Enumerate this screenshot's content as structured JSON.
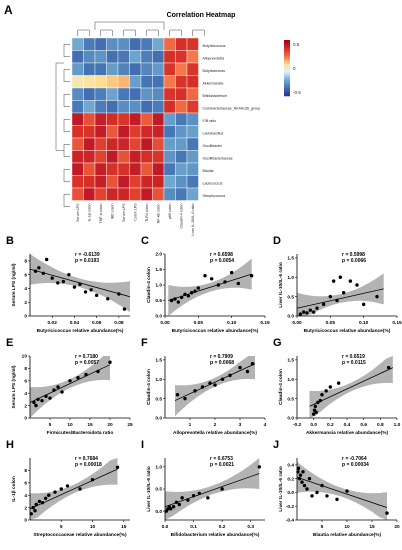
{
  "panel_a": {
    "label": "A",
    "title": "Correlation Heatmap",
    "row_labels": [
      "Butyricicoccus",
      "Alloprevotella",
      "Butyricimonas",
      "Akkermansia",
      "Bifidobacterium",
      "Coriobacteriaceae_NK4A136_group",
      "F/B ratio",
      "Lactobacillus",
      "Oscillibacter",
      "Oscillibacteriaceae",
      "Blautia",
      "Lactococcus",
      "Streptococcus"
    ],
    "col_labels": [
      "Serum LPS",
      "IL-1β colon",
      "TNF-α colon",
      "IBD colon",
      "Serum LPS",
      "Colon LPS",
      "TLR4 colon",
      "NF-κB colon",
      "p65 colon",
      "Claudin-4 colon",
      "Liver IL-10/IL-6 ratio"
    ],
    "legend_ticks": [
      "0.5",
      "0",
      "-0.5"
    ]
  },
  "chart_data": [
    {
      "panel": "B",
      "type": "scatter",
      "xlabel": "Butyricicoccus relative abundance(%)",
      "ylabel": "Serum LPS (ng/ml)",
      "stat_r": "r = -0.6139",
      "stat_p": "p = 0.0193",
      "xticks": [
        "0.02",
        "0.04",
        "0.06",
        "0.08"
      ],
      "yticks": [
        "0",
        "2",
        "4",
        "6",
        "8"
      ],
      "xlim": [
        0,
        0.09
      ],
      "ylim": [
        0,
        9
      ],
      "points": [
        [
          0.005,
          6.5
        ],
        [
          0.008,
          7.0
        ],
        [
          0.012,
          6.2
        ],
        [
          0.015,
          8.2
        ],
        [
          0.02,
          5.5
        ],
        [
          0.025,
          4.8
        ],
        [
          0.03,
          5.0
        ],
        [
          0.035,
          6.0
        ],
        [
          0.04,
          4.2
        ],
        [
          0.045,
          4.6
        ],
        [
          0.05,
          3.5
        ],
        [
          0.055,
          3.8
        ],
        [
          0.06,
          3.0
        ],
        [
          0.07,
          2.5
        ],
        [
          0.08,
          3.2
        ],
        [
          0.085,
          1.0
        ]
      ],
      "line": [
        [
          0,
          6.8
        ],
        [
          0.09,
          2.8
        ]
      ]
    },
    {
      "panel": "C",
      "type": "scatter",
      "xlabel": "Butyricicoccus relative abundance(%)",
      "ylabel": "Claudin-4 colon",
      "stat_r": "r = 0.6598",
      "stat_p": "p = 0.0054",
      "xticks": [
        "0.00",
        "0.05",
        "0.10",
        "0.15"
      ],
      "yticks": [
        "0.0",
        "0.5",
        "1.0",
        "1.5",
        "2.0"
      ],
      "xlim": [
        0,
        0.15
      ],
      "ylim": [
        0,
        2
      ],
      "points": [
        [
          0.01,
          0.5
        ],
        [
          0.015,
          0.55
        ],
        [
          0.02,
          0.45
        ],
        [
          0.025,
          0.6
        ],
        [
          0.03,
          0.7
        ],
        [
          0.035,
          0.65
        ],
        [
          0.04,
          0.75
        ],
        [
          0.045,
          0.8
        ],
        [
          0.05,
          0.9
        ],
        [
          0.06,
          1.3
        ],
        [
          0.07,
          1.2
        ],
        [
          0.08,
          1.0
        ],
        [
          0.09,
          1.1
        ],
        [
          0.1,
          1.4
        ],
        [
          0.11,
          1.05
        ],
        [
          0.13,
          1.3
        ]
      ],
      "line": [
        [
          0.005,
          0.5
        ],
        [
          0.13,
          1.35
        ]
      ]
    },
    {
      "panel": "D",
      "type": "scatter",
      "xlabel": "Butyricicoccus relative abundance(%)",
      "ylabel": "Liver IL-10/IL-6 ratio",
      "stat_r": "r = 0.5998",
      "stat_p": "p = 0.0066",
      "xticks": [
        "0.00",
        "0.05",
        "0.10",
        "0.15"
      ],
      "yticks": [
        "0.0",
        "0.5",
        "1.0",
        "1.5"
      ],
      "xlim": [
        0,
        0.15
      ],
      "ylim": [
        0,
        1.6
      ],
      "points": [
        [
          0.005,
          0.05
        ],
        [
          0.01,
          0.1
        ],
        [
          0.015,
          0.08
        ],
        [
          0.02,
          0.15
        ],
        [
          0.025,
          0.1
        ],
        [
          0.03,
          0.2
        ],
        [
          0.04,
          0.3
        ],
        [
          0.05,
          0.5
        ],
        [
          0.055,
          0.9
        ],
        [
          0.06,
          0.4
        ],
        [
          0.065,
          1.0
        ],
        [
          0.07,
          0.6
        ],
        [
          0.08,
          0.9
        ],
        [
          0.09,
          0.8
        ],
        [
          0.1,
          0.3
        ],
        [
          0.12,
          0.5
        ]
      ],
      "line": [
        [
          0.0,
          0.2
        ],
        [
          0.13,
          0.7
        ]
      ]
    },
    {
      "panel": "E",
      "type": "scatter",
      "xlabel": "Firmicutes/Bacteroidota ratio",
      "ylabel": "Serum LPS (ng/ml)",
      "stat_r": "r = 0.7180",
      "stat_p": "p = 0.0057",
      "xticks": [
        "5",
        "10",
        "15",
        "20",
        "25"
      ],
      "yticks": [
        "0",
        "2",
        "4",
        "6",
        "8",
        "10"
      ],
      "xlim": [
        0,
        25
      ],
      "ylim": [
        0,
        10
      ],
      "points": [
        [
          1,
          2.5
        ],
        [
          1.5,
          2.0
        ],
        [
          2,
          3.0
        ],
        [
          3,
          2.8
        ],
        [
          4,
          3.5
        ],
        [
          5,
          3.2
        ],
        [
          6,
          4.5
        ],
        [
          7,
          5.0
        ],
        [
          8,
          4.2
        ],
        [
          10,
          6.0
        ],
        [
          12,
          6.5
        ],
        [
          14,
          7.0
        ],
        [
          17,
          7.5
        ],
        [
          20,
          9.0
        ]
      ],
      "line": [
        [
          0,
          2.5
        ],
        [
          20,
          8.6
        ]
      ]
    },
    {
      "panel": "F",
      "type": "scatter",
      "xlabel": "Alloprevotella relative abundance(%)",
      "ylabel": "Claudin-4 colon",
      "stat_r": "r = 0.7909",
      "stat_p": "p = 0.0068",
      "xticks": [
        "1",
        "2",
        "3",
        "4"
      ],
      "yticks": [
        "0.0",
        "0.5",
        "1.0",
        "1.5"
      ],
      "xlim": [
        0,
        4
      ],
      "ylim": [
        0,
        1.6
      ],
      "points": [
        [
          0.5,
          0.6
        ],
        [
          0.8,
          0.5
        ],
        [
          1.2,
          0.7
        ],
        [
          1.5,
          0.8
        ],
        [
          1.8,
          0.9
        ],
        [
          2.0,
          0.85
        ],
        [
          2.3,
          1.0
        ],
        [
          2.6,
          1.1
        ],
        [
          3.0,
          1.3
        ],
        [
          3.3,
          1.2
        ],
        [
          3.5,
          1.4
        ]
      ],
      "line": [
        [
          0.4,
          0.45
        ],
        [
          3.6,
          1.4
        ]
      ]
    },
    {
      "panel": "G",
      "type": "scatter",
      "xlabel": "Akkermansia relative abundance(%)",
      "ylabel": "Claudin-4 colon",
      "stat_r": "r = 0.6519",
      "stat_p": "p = 0.0115",
      "xticks": [
        "-0.2",
        "0.0",
        "0.2",
        "0.4",
        "0.6",
        "0.8",
        "1.0"
      ],
      "yticks": [
        "0.0",
        "0.5",
        "1.0",
        "1.5"
      ],
      "xlim": [
        -0.2,
        1.0
      ],
      "ylim": [
        0,
        1.6
      ],
      "points": [
        [
          0.0,
          0.1
        ],
        [
          0.01,
          0.2
        ],
        [
          0.02,
          0.3
        ],
        [
          0.03,
          0.15
        ],
        [
          0.05,
          0.4
        ],
        [
          0.08,
          0.45
        ],
        [
          0.1,
          0.6
        ],
        [
          0.15,
          0.7
        ],
        [
          0.2,
          0.8
        ],
        [
          0.3,
          0.9
        ],
        [
          0.9,
          1.3
        ]
      ],
      "line": [
        [
          -0.05,
          0.3
        ],
        [
          0.95,
          1.3
        ]
      ]
    },
    {
      "panel": "H",
      "type": "scatter",
      "xlabel": "Streptococcaceae relative abundance(%)",
      "ylabel": "IL-1β colon",
      "stat_r": "r = 0.7684",
      "stat_p": "p = 0.00018",
      "xticks": [
        "5",
        "10",
        "15"
      ],
      "yticks": [
        "0",
        "2",
        "4",
        "6",
        "8"
      ],
      "xlim": [
        0,
        16
      ],
      "ylim": [
        0,
        10
      ],
      "points": [
        [
          0.2,
          1.0
        ],
        [
          0.5,
          2.0
        ],
        [
          0.8,
          1.5
        ],
        [
          1.0,
          2.5
        ],
        [
          1.5,
          3.0
        ],
        [
          2.0,
          2.8
        ],
        [
          2.5,
          3.5
        ],
        [
          3,
          4.0
        ],
        [
          4,
          4.5
        ],
        [
          5,
          5.0
        ],
        [
          6,
          5.5
        ],
        [
          8,
          5.0
        ],
        [
          10,
          6.5
        ],
        [
          14,
          8.5
        ]
      ],
      "line": [
        [
          0,
          1.8
        ],
        [
          14,
          8.2
        ]
      ]
    },
    {
      "panel": "I",
      "type": "scatter",
      "xlabel": "Bifidobacterium relative abundance(%)",
      "ylabel": "Liver IL-10/IL-6 ratio",
      "stat_r": "r = 0.6753",
      "stat_p": "p = 0.0021",
      "xticks": [
        "0.0",
        "0.1",
        "0.2",
        "0.3"
      ],
      "yticks": [
        "0.0",
        "0.5",
        "1.0"
      ],
      "xlim": [
        0,
        0.35
      ],
      "ylim": [
        -0.2,
        1.2
      ],
      "points": [
        [
          0.005,
          0.0
        ],
        [
          0.01,
          0.05
        ],
        [
          0.015,
          0.1
        ],
        [
          0.02,
          0.05
        ],
        [
          0.03,
          0.1
        ],
        [
          0.04,
          0.2
        ],
        [
          0.05,
          0.15
        ],
        [
          0.06,
          0.3
        ],
        [
          0.08,
          0.25
        ],
        [
          0.1,
          0.35
        ],
        [
          0.12,
          0.4
        ],
        [
          0.15,
          0.3
        ],
        [
          0.2,
          0.5
        ],
        [
          0.33,
          1.0
        ]
      ],
      "line": [
        [
          0,
          0.1
        ],
        [
          0.33,
          0.85
        ]
      ]
    },
    {
      "panel": "J",
      "type": "scatter",
      "xlabel": "Blautia relative abundance(%)",
      "ylabel": "Liver IL-10/IL-6 ratio",
      "stat_r": "r = -0.7064",
      "stat_p": "p = 0.00034",
      "xticks": [
        "5",
        "10",
        "15",
        "20"
      ],
      "yticks": [
        "-0.4",
        "-0.2",
        "0.0",
        "0.2",
        "0.4"
      ],
      "xlim": [
        0,
        20
      ],
      "ylim": [
        -0.4,
        0.5
      ],
      "points": [
        [
          0.2,
          0.3
        ],
        [
          0.3,
          0.35
        ],
        [
          0.5,
          0.2
        ],
        [
          0.7,
          0.25
        ],
        [
          1.0,
          0.15
        ],
        [
          1.2,
          0.3
        ],
        [
          1.5,
          0.1
        ],
        [
          2.0,
          0.05
        ],
        [
          2.5,
          0.2
        ],
        [
          3.0,
          -0.05
        ],
        [
          4.0,
          0.0
        ],
        [
          5.0,
          0.1
        ],
        [
          6.0,
          -0.05
        ],
        [
          8,
          -0.1
        ],
        [
          10,
          0.02
        ],
        [
          18,
          -0.3
        ]
      ],
      "line": [
        [
          0,
          0.22
        ],
        [
          18,
          -0.22
        ]
      ]
    }
  ]
}
